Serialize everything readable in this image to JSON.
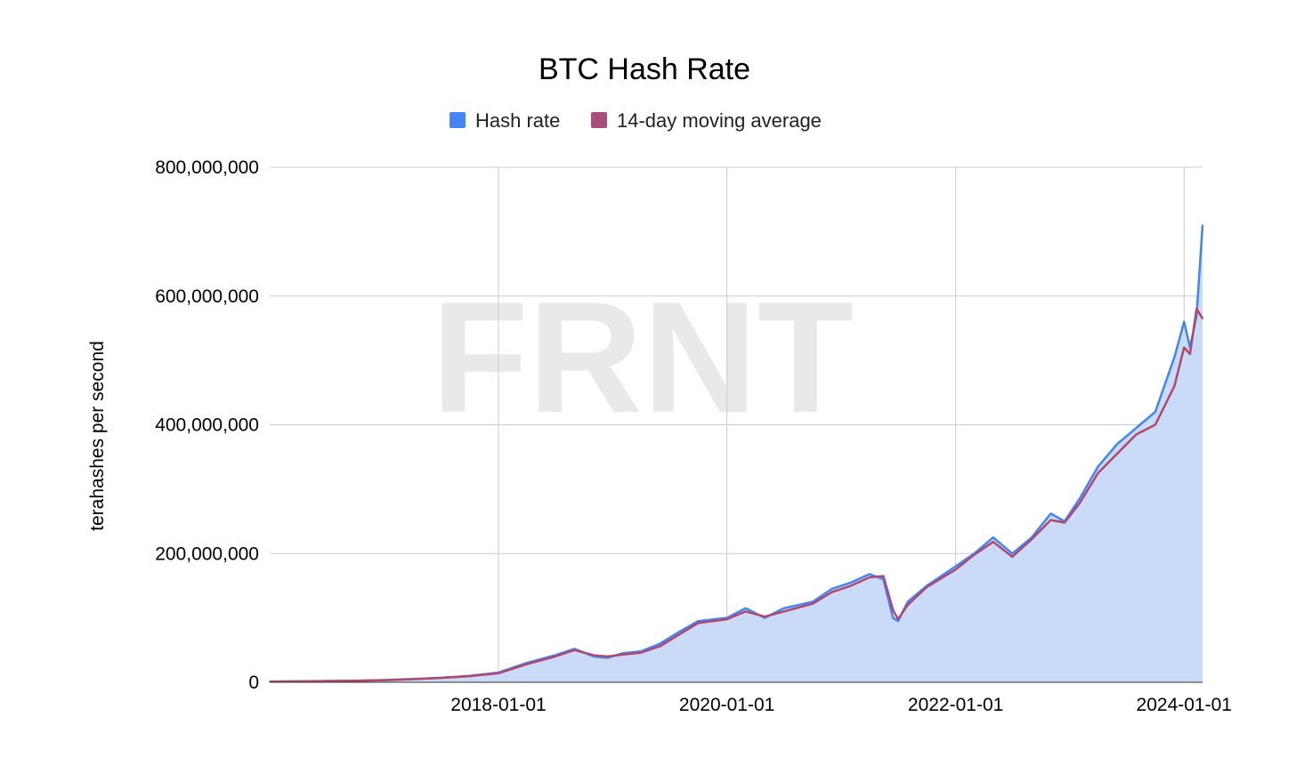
{
  "chart_data": {
    "type": "area",
    "title": "BTC Hash Rate",
    "xlabel": "",
    "ylabel": "terahashes per second",
    "watermark": "FRNT",
    "ylim": [
      0,
      800000000
    ],
    "xlim": [
      "2016-01-01",
      "2024-02-29"
    ],
    "y_ticks": [
      0,
      200000000,
      400000000,
      600000000,
      800000000
    ],
    "y_tick_labels": [
      "0",
      "200,000,000",
      "400,000,000",
      "600,000,000",
      "800,000,000"
    ],
    "x_ticks": [
      "2018-01-01",
      "2020-01-01",
      "2022-01-01",
      "2024-01-01"
    ],
    "x_tick_labels": [
      "2018-01-01",
      "2020-01-01",
      "2022-01-01",
      "2024-01-01"
    ],
    "grid": true,
    "legend_position": "top",
    "legend": [
      "Hash rate",
      "14-day moving average"
    ],
    "colors": {
      "hash_rate_line": "#4285f4",
      "hash_rate_fill": "#c9dbf7",
      "moving_average": "#b3476c",
      "legend_hash_rate": "#4285f4",
      "legend_moving_average": "#a64d79",
      "grid": "#cccccc",
      "watermark": "#e9e9e9"
    },
    "series": [
      {
        "name": "Hash rate",
        "x": [
          "2016-01-01",
          "2016-04-01",
          "2016-07-01",
          "2016-10-01",
          "2017-01-01",
          "2017-04-01",
          "2017-07-01",
          "2017-10-01",
          "2018-01-01",
          "2018-04-01",
          "2018-07-01",
          "2018-09-01",
          "2018-11-01",
          "2018-12-15",
          "2019-02-01",
          "2019-04-01",
          "2019-06-01",
          "2019-08-01",
          "2019-10-01",
          "2020-01-01",
          "2020-03-01",
          "2020-05-01",
          "2020-07-01",
          "2020-10-01",
          "2020-12-01",
          "2021-02-01",
          "2021-04-01",
          "2021-05-15",
          "2021-06-15",
          "2021-07-01",
          "2021-08-01",
          "2021-10-01",
          "2022-01-01",
          "2022-03-01",
          "2022-05-01",
          "2022-07-01",
          "2022-09-01",
          "2022-11-01",
          "2022-12-15",
          "2023-02-01",
          "2023-04-01",
          "2023-06-01",
          "2023-08-01",
          "2023-10-01",
          "2023-12-01",
          "2024-01-01",
          "2024-01-20",
          "2024-02-10",
          "2024-02-29"
        ],
        "values": [
          1000000,
          1500000,
          2000000,
          2500000,
          3500000,
          5000000,
          7000000,
          10000000,
          15000000,
          30000000,
          42000000,
          52000000,
          40000000,
          38000000,
          45000000,
          48000000,
          60000000,
          78000000,
          95000000,
          100000000,
          115000000,
          100000000,
          115000000,
          125000000,
          145000000,
          155000000,
          168000000,
          160000000,
          100000000,
          95000000,
          125000000,
          150000000,
          180000000,
          200000000,
          225000000,
          200000000,
          225000000,
          262000000,
          250000000,
          285000000,
          335000000,
          370000000,
          395000000,
          420000000,
          505000000,
          560000000,
          520000000,
          570000000,
          710000000
        ]
      },
      {
        "name": "14-day moving average",
        "x": [
          "2016-01-01",
          "2016-04-01",
          "2016-07-01",
          "2016-10-01",
          "2017-01-01",
          "2017-04-01",
          "2017-07-01",
          "2017-10-01",
          "2018-01-01",
          "2018-04-01",
          "2018-07-01",
          "2018-09-01",
          "2018-11-01",
          "2018-12-15",
          "2019-02-01",
          "2019-04-01",
          "2019-06-01",
          "2019-08-01",
          "2019-10-01",
          "2020-01-01",
          "2020-03-01",
          "2020-05-01",
          "2020-07-01",
          "2020-10-01",
          "2020-12-01",
          "2021-02-01",
          "2021-04-01",
          "2021-05-15",
          "2021-06-15",
          "2021-07-01",
          "2021-08-01",
          "2021-10-01",
          "2022-01-01",
          "2022-03-01",
          "2022-05-01",
          "2022-07-01",
          "2022-09-01",
          "2022-11-01",
          "2022-12-15",
          "2023-02-01",
          "2023-04-01",
          "2023-06-01",
          "2023-08-01",
          "2023-10-01",
          "2023-12-01",
          "2024-01-01",
          "2024-01-20",
          "2024-02-10",
          "2024-02-29"
        ],
        "values": [
          1000000,
          1400000,
          1900000,
          2400000,
          3200000,
          4800000,
          6800000,
          9500000,
          14000000,
          28000000,
          40000000,
          50000000,
          42000000,
          40000000,
          43000000,
          46000000,
          56000000,
          74000000,
          92000000,
          98000000,
          110000000,
          102000000,
          110000000,
          122000000,
          140000000,
          150000000,
          163000000,
          165000000,
          112000000,
          98000000,
          120000000,
          148000000,
          175000000,
          198000000,
          218000000,
          195000000,
          222000000,
          252000000,
          248000000,
          278000000,
          325000000,
          355000000,
          385000000,
          400000000,
          460000000,
          520000000,
          510000000,
          580000000,
          565000000
        ]
      }
    ]
  }
}
